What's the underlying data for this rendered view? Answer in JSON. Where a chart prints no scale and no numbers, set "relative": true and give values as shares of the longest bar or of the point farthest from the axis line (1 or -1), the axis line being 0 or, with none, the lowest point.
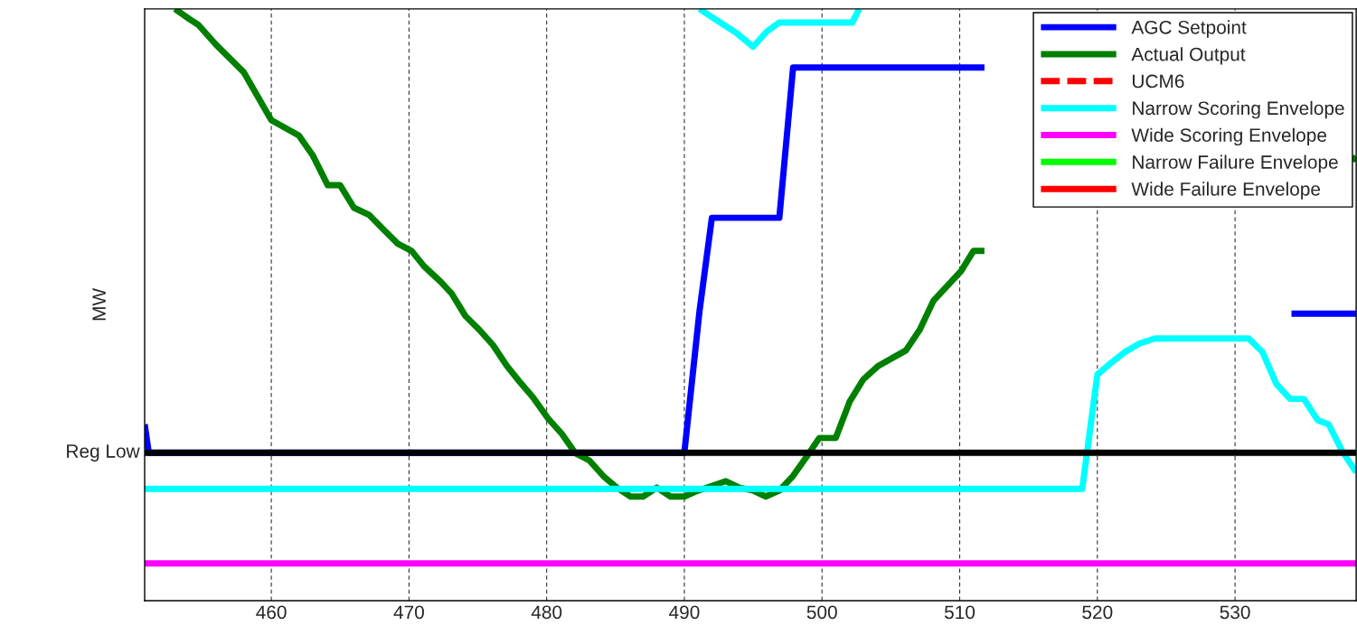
{
  "chart_data": {
    "type": "line",
    "relative": true,
    "ylabel": "MW",
    "xlim": [
      450.8,
      538.8
    ],
    "xticks": [
      460,
      470,
      480,
      490,
      500,
      510,
      520,
      530
    ],
    "grid": "x",
    "legend": "top right",
    "tick_labels": "x",
    "ref_lines": [
      {
        "axis": "y",
        "value": 0.25,
        "label": "Reg Low",
        "color": "#000000"
      }
    ],
    "series": [
      {
        "name": "AGC Setpoint",
        "color": "#0000ff",
        "x": [
          450.8,
          451.1,
          490.0,
          491.1,
          492.0,
          496.9,
          497.9,
          511.8,
          532.8,
          534.1,
          538.8
        ],
        "values": [
          0.298,
          0.25,
          0.25,
          0.489,
          0.647,
          0.647,
          0.901,
          0.901,
          null,
          0.485,
          0.485
        ]
      },
      {
        "name": "Actual Output",
        "color": "#008000",
        "x": [
          453.0,
          454.1,
          454.7,
          456.0,
          458.0,
          460.0,
          462.0,
          463.0,
          464.1,
          465.0,
          466.0,
          467.1,
          468.2,
          469.2,
          470.2,
          471.1,
          472.3,
          473.1,
          474.1,
          475.1,
          476.1,
          477.1,
          478.0,
          479.0,
          480.1,
          481.1,
          482.1,
          483.1,
          484.1,
          485.1,
          486.1,
          487.0,
          488.0,
          489.0,
          490.0,
          491.0,
          492.0,
          493.0,
          494.0,
          495.0,
          495.9,
          496.9,
          497.9,
          498.9,
          499.8,
          501.0,
          502.0,
          503.0,
          504.1,
          506.1,
          507.1,
          508.1,
          510.1,
          511.0,
          511.8,
          525.0,
          538.5,
          538.8
        ],
        "values": [
          1.0,
          0.982,
          0.973,
          0.939,
          0.893,
          0.812,
          0.786,
          0.753,
          0.702,
          0.702,
          0.664,
          0.652,
          0.626,
          0.603,
          0.591,
          0.565,
          0.539,
          0.519,
          0.481,
          0.458,
          0.432,
          0.397,
          0.371,
          0.344,
          0.308,
          0.282,
          0.249,
          0.237,
          0.211,
          0.191,
          0.176,
          0.176,
          0.191,
          0.176,
          0.176,
          0.186,
          0.194,
          0.202,
          0.191,
          0.186,
          0.176,
          0.186,
          0.211,
          0.244,
          0.275,
          0.275,
          0.336,
          0.374,
          0.397,
          0.423,
          0.458,
          0.507,
          0.557,
          0.591,
          0.591,
          null,
          0.744,
          0.75
        ]
      },
      {
        "name": "UCM6",
        "color": "#ff0000",
        "line_style": "dashed"
      },
      {
        "name": "Narrow Scoring Envelope",
        "color": "#00ffff",
        "x": [
          450.8,
          518.9,
          520.0,
          521.0,
          522.0,
          523.1,
          524.2,
          531.0,
          532.0,
          533.0,
          534.0,
          535.0,
          536.0,
          536.8,
          537.8,
          538.8
        ],
        "values": [
          0.189,
          0.189,
          0.382,
          0.402,
          0.42,
          0.435,
          0.443,
          0.443,
          0.42,
          0.366,
          0.341,
          0.341,
          0.305,
          0.298,
          0.252,
          0.217
        ]
      },
      {
        "color": "#00ffff",
        "x": [
          491.1,
          492.8,
          493.8,
          495.0,
          496.0,
          496.9,
          502.2,
          502.7
        ],
        "values": [
          1.0,
          0.974,
          0.959,
          0.936,
          0.962,
          0.977,
          0.977,
          1.0
        ]
      },
      {
        "name": "Wide Scoring Envelope",
        "color": "#ff00ff",
        "x": [
          450.8,
          538.8
        ],
        "values": [
          0.063,
          0.063
        ]
      },
      {
        "name": "Narrow Failure Envelope",
        "color": "#00ff00"
      },
      {
        "name": "Wide Failure Envelope",
        "color": "#ff0000"
      }
    ]
  }
}
